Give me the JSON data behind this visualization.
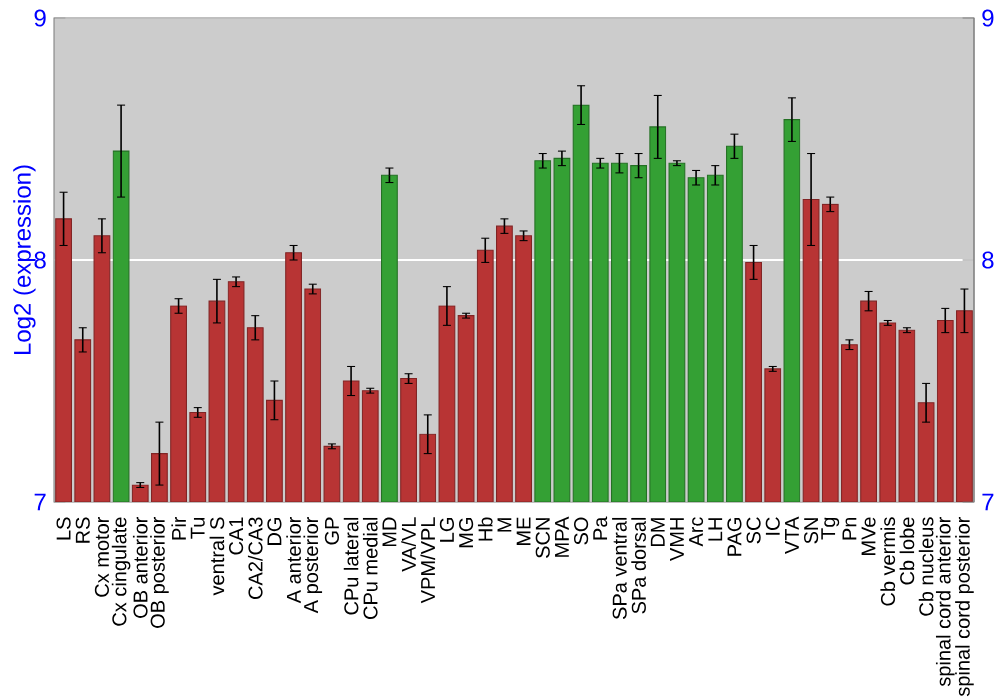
{
  "chart_data": {
    "type": "bar",
    "ylabel": "Log2 (expression)",
    "categories": [
      "LS",
      "RS",
      "Cx motor",
      "Cx cingulate",
      "OB anterior",
      "OB posterior",
      "Pir",
      "Tu",
      "ventral S",
      "CA1",
      "CA2/CA3",
      "DG",
      "A anterior",
      "A posterior",
      "GP",
      "CPu lateral",
      "CPu medial",
      "MD",
      "VA/VL",
      "VPM/VPL",
      "LG",
      "MG",
      "Hb",
      "M",
      "ME",
      "SCN",
      "MPA",
      "SO",
      "Pa",
      "SPa ventral",
      "SPa dorsal",
      "DM",
      "VMH",
      "Arc",
      "LH",
      "PAG",
      "SC",
      "IC",
      "VTA",
      "SN",
      "Tg",
      "Pn",
      "MVe",
      "Cb vermis",
      "Cb lobe",
      "Cb nucleus",
      "spinal cord anterior",
      "spinal cord posterior"
    ],
    "values": [
      8.17,
      7.67,
      8.1,
      8.45,
      7.07,
      7.2,
      7.81,
      7.37,
      7.83,
      7.91,
      7.72,
      7.42,
      8.03,
      7.88,
      7.23,
      7.5,
      7.46,
      8.35,
      7.51,
      7.28,
      7.81,
      7.77,
      8.04,
      8.14,
      8.1,
      8.41,
      8.42,
      8.64,
      8.4,
      8.4,
      8.39,
      8.55,
      8.4,
      8.34,
      8.35,
      8.47,
      7.99,
      7.55,
      8.58,
      8.25,
      8.23,
      7.65,
      7.83,
      7.74,
      7.71,
      7.41,
      7.75,
      7.79
    ],
    "errors": [
      0.11,
      0.05,
      0.07,
      0.19,
      0.01,
      0.13,
      0.03,
      0.02,
      0.09,
      0.02,
      0.05,
      0.08,
      0.03,
      0.02,
      0.01,
      0.06,
      0.01,
      0.03,
      0.02,
      0.08,
      0.08,
      0.01,
      0.05,
      0.03,
      0.02,
      0.03,
      0.03,
      0.08,
      0.02,
      0.04,
      0.05,
      0.13,
      0.01,
      0.03,
      0.04,
      0.05,
      0.07,
      0.01,
      0.09,
      0.19,
      0.03,
      0.02,
      0.04,
      0.01,
      0.01,
      0.08,
      0.05,
      0.09
    ],
    "colors": [
      "#b83434",
      "#b83434",
      "#b83434",
      "#34a034",
      "#b83434",
      "#b83434",
      "#b83434",
      "#b83434",
      "#b83434",
      "#b83434",
      "#b83434",
      "#b83434",
      "#b83434",
      "#b83434",
      "#b83434",
      "#b83434",
      "#b83434",
      "#34a034",
      "#b83434",
      "#b83434",
      "#b83434",
      "#b83434",
      "#b83434",
      "#b83434",
      "#b83434",
      "#34a034",
      "#34a034",
      "#34a034",
      "#34a034",
      "#34a034",
      "#34a034",
      "#34a034",
      "#34a034",
      "#34a034",
      "#34a034",
      "#34a034",
      "#b83434",
      "#b83434",
      "#34a034",
      "#b83434",
      "#b83434",
      "#b83434",
      "#b83434",
      "#b83434",
      "#b83434",
      "#b83434",
      "#b83434",
      "#b83434"
    ],
    "ylim": [
      7,
      9
    ],
    "yticks": [
      7,
      8,
      9
    ],
    "y2lim": [
      7,
      9
    ],
    "y2ticks": [
      7,
      8,
      9
    ],
    "grid": "y"
  }
}
